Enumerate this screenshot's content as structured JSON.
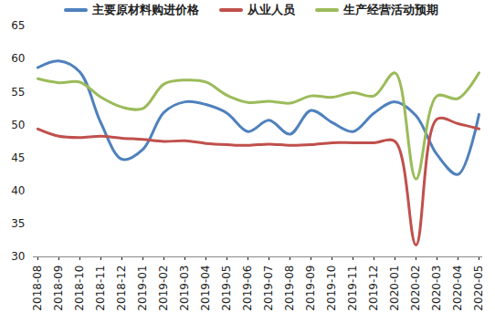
{
  "chart_data": {
    "type": "line",
    "categories": [
      "2018-08",
      "2018-09",
      "2018-10",
      "2018-11",
      "2018-12",
      "2019-01",
      "2019-02",
      "2019-03",
      "2019-04",
      "2019-05",
      "2019-06",
      "2019-07",
      "2019-08",
      "2019-09",
      "2019-10",
      "2019-11",
      "2019-12",
      "2020-01",
      "2020-02",
      "2020-03",
      "2020-04",
      "2020-05"
    ],
    "series": [
      {
        "name": "主要原材料购进价格",
        "color": "#4f81bd",
        "values": [
          58.7,
          59.7,
          58.0,
          50.3,
          44.8,
          46.3,
          51.9,
          53.5,
          53.1,
          51.8,
          49.0,
          50.7,
          48.6,
          52.2,
          50.4,
          49.0,
          51.8,
          53.5,
          51.4,
          45.5,
          42.5,
          51.6
        ]
      },
      {
        "name": "从业人员",
        "color": "#c0504d",
        "values": [
          49.4,
          48.3,
          48.1,
          48.3,
          48.0,
          47.8,
          47.5,
          47.6,
          47.2,
          47.0,
          46.9,
          47.1,
          46.9,
          47.0,
          47.3,
          47.3,
          47.3,
          47.5,
          31.8,
          50.9,
          50.2,
          49.4
        ]
      },
      {
        "name": "生产经营活动预期",
        "color": "#9bbb59",
        "values": [
          57.0,
          56.4,
          56.5,
          54.2,
          52.7,
          52.5,
          56.2,
          56.8,
          56.5,
          54.5,
          53.4,
          53.6,
          53.3,
          54.4,
          54.2,
          54.9,
          54.4,
          57.9,
          41.8,
          54.4,
          54.0,
          57.9
        ]
      }
    ],
    "ylim": [
      30,
      65
    ],
    "yticks": [
      30,
      35,
      40,
      45,
      50,
      55,
      60,
      65
    ],
    "grid": false,
    "legend": "top"
  }
}
